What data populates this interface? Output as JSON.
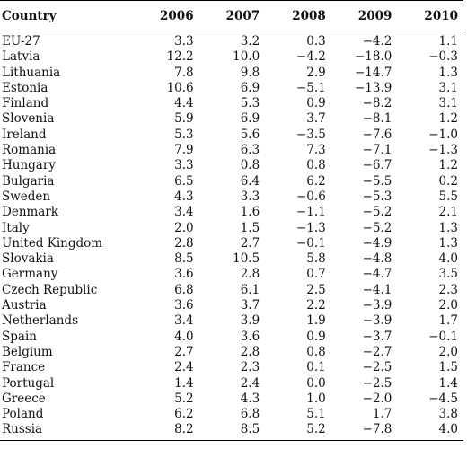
{
  "table": {
    "headers": [
      "Country",
      "2006",
      "2007",
      "2008",
      "2009",
      "2010"
    ],
    "rows": [
      [
        "EU-27",
        "3.3",
        "3.2",
        "0.3",
        "−4.2",
        "1.1"
      ],
      [
        "Latvia",
        "12.2",
        "10.0",
        "−4.2",
        "−18.0",
        "−0.3"
      ],
      [
        "Lithuania",
        "7.8",
        "9.8",
        "2.9",
        "−14.7",
        "1.3"
      ],
      [
        "Estonia",
        "10.6",
        "6.9",
        "−5.1",
        "−13.9",
        "3.1"
      ],
      [
        "Finland",
        "4.4",
        "5.3",
        "0.9",
        "−8.2",
        "3.1"
      ],
      [
        "Slovenia",
        "5.9",
        "6.9",
        "3.7",
        "−8.1",
        "1.2"
      ],
      [
        "Ireland",
        "5.3",
        "5.6",
        "−3.5",
        "−7.6",
        "−1.0"
      ],
      [
        "Romania",
        "7.9",
        "6.3",
        "7.3",
        "−7.1",
        "−1.3"
      ],
      [
        "Hungary",
        "3.3",
        "0.8",
        "0.8",
        "−6.7",
        "1.2"
      ],
      [
        "Bulgaria",
        "6.5",
        "6.4",
        "6.2",
        "−5.5",
        "0.2"
      ],
      [
        "Sweden",
        "4.3",
        "3.3",
        "−0.6",
        "−5.3",
        "5.5"
      ],
      [
        "Denmark",
        "3.4",
        "1.6",
        "−1.1",
        "−5.2",
        "2.1"
      ],
      [
        "Italy",
        "2.0",
        "1.5",
        "−1.3",
        "−5.2",
        "1.3"
      ],
      [
        "United Kingdom",
        "2.8",
        "2.7",
        "−0.1",
        "−4.9",
        "1.3"
      ],
      [
        "Slovakia",
        "8.5",
        "10.5",
        "5.8",
        "−4.8",
        "4.0"
      ],
      [
        "Germany",
        "3.6",
        "2.8",
        "0.7",
        "−4.7",
        "3.5"
      ],
      [
        "Czech Republic",
        "6.8",
        "6.1",
        "2.5",
        "−4.1",
        "2.3"
      ],
      [
        "Austria",
        "3.6",
        "3.7",
        "2.2",
        "−3.9",
        "2.0"
      ],
      [
        "Netherlands",
        "3.4",
        "3.9",
        "1.9",
        "−3.9",
        "1.7"
      ],
      [
        "Spain",
        "4.0",
        "3.6",
        "0.9",
        "−3.7",
        "−0.1"
      ],
      [
        "Belgium",
        "2.7",
        "2.8",
        "0.8",
        "−2.7",
        "2.0"
      ],
      [
        "France",
        "2.4",
        "2.3",
        "0.1",
        "−2.5",
        "1.5"
      ],
      [
        "Portugal",
        "1.4",
        "2.4",
        "0.0",
        "−2.5",
        "1.4"
      ],
      [
        "Greece",
        "5.2",
        "4.3",
        "1.0",
        "−2.0",
        "−4.5"
      ],
      [
        "Poland",
        "6.2",
        "6.8",
        "5.1",
        "1.7",
        "3.8"
      ],
      [
        "Russia",
        "8.2",
        "8.5",
        "5.2",
        "−7.8",
        "4.0"
      ]
    ]
  }
}
